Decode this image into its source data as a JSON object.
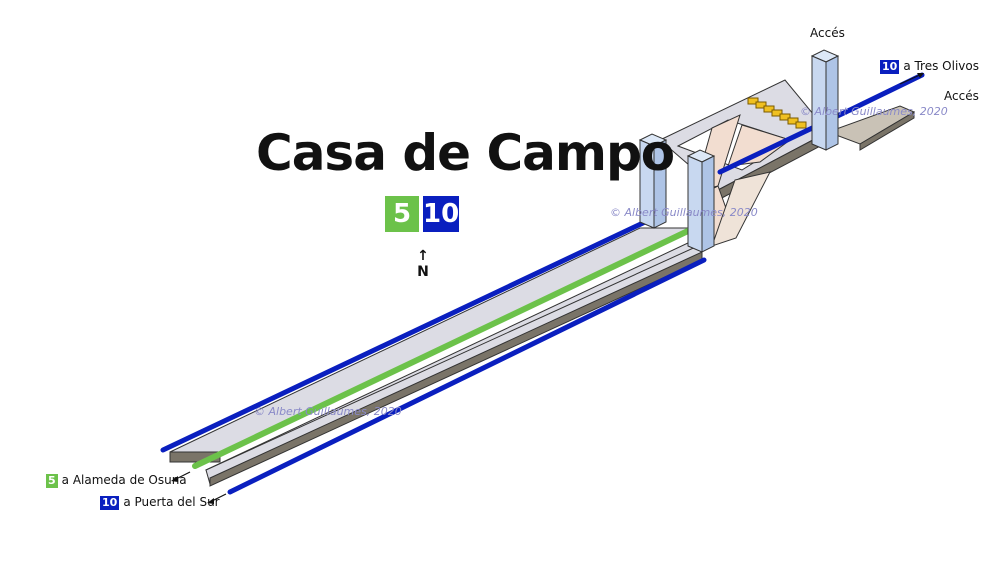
{
  "station": {
    "name": "Casa de Campo"
  },
  "lines": [
    {
      "number": "5",
      "color": "#6cc24a"
    },
    {
      "number": "10",
      "color": "#0a1fbf"
    }
  ],
  "compass": {
    "label": "N"
  },
  "access_labels": {
    "top": "Accés",
    "right": "Accés"
  },
  "directions": {
    "tres_olivos": {
      "line": "10",
      "text": "a Tres Olivos"
    },
    "alameda": {
      "line": "5",
      "text": "a Alameda de Osuna"
    },
    "puerta_sur": {
      "line": "10",
      "text": "a Puerta del Sur"
    }
  },
  "credit": "© Albert Guillaumes, 2020",
  "colors": {
    "platform": "#dcdce4",
    "platform_edge": "#7a7468",
    "stair": "#f2ddd0",
    "access_shaft": "#c8d8f0",
    "turnstile": "#f0c020"
  }
}
